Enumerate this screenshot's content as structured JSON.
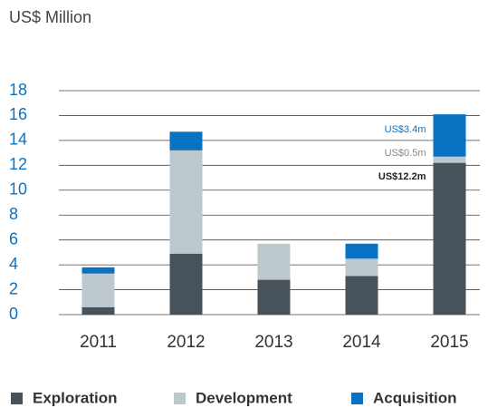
{
  "chart_data": {
    "type": "stacked-bar",
    "subtitle": "US$ Million",
    "categories": [
      "2011",
      "2012",
      "2013",
      "2014",
      "2015"
    ],
    "series": [
      {
        "name": "Exploration",
        "color": "#47525b",
        "values": [
          0.6,
          4.9,
          2.8,
          3.1,
          12.2
        ],
        "value_labels": [
          null,
          null,
          null,
          null,
          "US$12.2m"
        ]
      },
      {
        "name": "Development",
        "color": "#bdc7ce",
        "values": [
          2.7,
          8.3,
          2.9,
          1.4,
          0.5
        ],
        "value_labels": [
          null,
          null,
          null,
          null,
          "US$0.5m"
        ]
      },
      {
        "name": "Acquisition",
        "color": "#0a72c2",
        "values": [
          0.5,
          1.5,
          0,
          1.2,
          3.4
        ],
        "value_labels": [
          null,
          null,
          null,
          null,
          "US$3.4m"
        ]
      }
    ],
    "ylim": [
      0,
      18
    ],
    "yticks": [
      0,
      2,
      4,
      6,
      8,
      10,
      12,
      14,
      16,
      18
    ],
    "grid": true
  }
}
